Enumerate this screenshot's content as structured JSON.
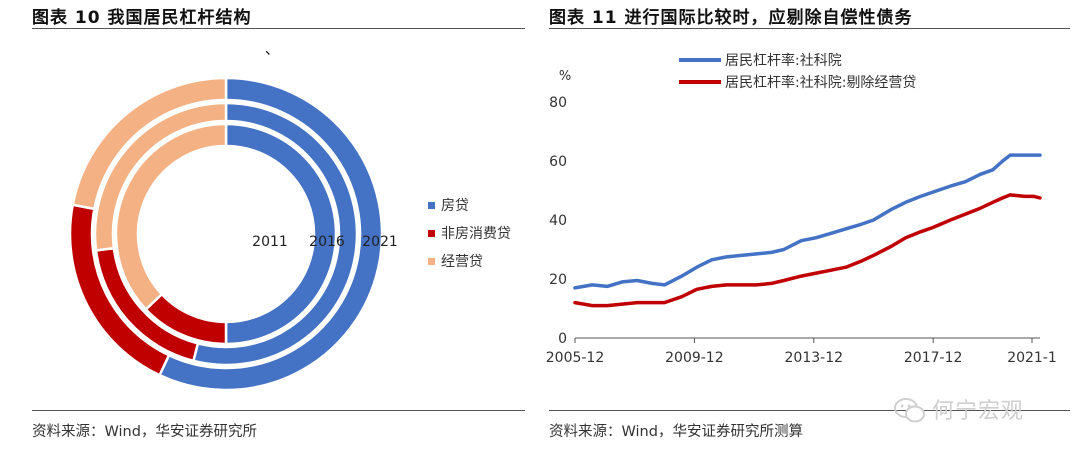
{
  "figures": [
    {
      "title": "图表 10 我国居民杠杆结构",
      "source": "资料来源：Wind，华安证券研究所"
    },
    {
      "title": "图表 11 进行国际比较时，应剔除自偿性债务",
      "source": "资料来源：Wind，华安证券研究所测算"
    }
  ],
  "stray_mark": "、",
  "watermark": "何宁宏观",
  "chart_data": [
    {
      "type": "pie",
      "variant": "nested-donut",
      "title": "",
      "rings": [
        "2011",
        "2016",
        "2021"
      ],
      "categories": [
        "房贷",
        "非房消费贷",
        "经营贷"
      ],
      "colors": [
        "#4472C4",
        "#C00000",
        "#F4B183"
      ],
      "values": {
        "2011": [
          50,
          13,
          37
        ],
        "2016": [
          54,
          19,
          27
        ],
        "2021": [
          57,
          21,
          22
        ]
      },
      "legend_position": "right"
    },
    {
      "type": "line",
      "title": "",
      "ylabel": "%",
      "ylim": [
        0,
        80
      ],
      "yticks": [
        0,
        20,
        40,
        60,
        80
      ],
      "xticklabels": [
        "2005-12",
        "2009-12",
        "2013-12",
        "2017-12",
        "2021-1"
      ],
      "x_range": [
        2005.92,
        2021.5
      ],
      "grid": false,
      "legend_position": "top",
      "series": [
        {
          "name": "居民杠杆率:社科院",
          "color": "#4472C4",
          "points": [
            [
              2005.92,
              17
            ],
            [
              2006.5,
              18
            ],
            [
              2007.0,
              17.5
            ],
            [
              2007.5,
              19
            ],
            [
              2008.0,
              19.5
            ],
            [
              2008.5,
              18.5
            ],
            [
              2008.92,
              18
            ],
            [
              2009.5,
              21
            ],
            [
              2010.0,
              24
            ],
            [
              2010.5,
              26.5
            ],
            [
              2011.0,
              27.5
            ],
            [
              2011.5,
              28
            ],
            [
              2012.0,
              28.5
            ],
            [
              2012.5,
              29
            ],
            [
              2012.92,
              30
            ],
            [
              2013.5,
              33
            ],
            [
              2014.0,
              34
            ],
            [
              2014.5,
              35.5
            ],
            [
              2015.0,
              37
            ],
            [
              2015.5,
              38.5
            ],
            [
              2015.92,
              40
            ],
            [
              2016.5,
              43.5
            ],
            [
              2017.0,
              46
            ],
            [
              2017.5,
              48
            ],
            [
              2017.92,
              49.5
            ],
            [
              2018.5,
              51.5
            ],
            [
              2019.0,
              53
            ],
            [
              2019.5,
              55.5
            ],
            [
              2019.92,
              57
            ],
            [
              2020.25,
              60
            ],
            [
              2020.5,
              62
            ],
            [
              2021.0,
              62
            ],
            [
              2021.5,
              62
            ]
          ]
        },
        {
          "name": "居民杠杆率:社科院:剔除经营贷",
          "color": "#C00000",
          "points": [
            [
              2005.92,
              12
            ],
            [
              2006.5,
              11
            ],
            [
              2007.0,
              11
            ],
            [
              2007.5,
              11.5
            ],
            [
              2008.0,
              12
            ],
            [
              2008.5,
              12
            ],
            [
              2008.92,
              12
            ],
            [
              2009.5,
              14
            ],
            [
              2010.0,
              16.5
            ],
            [
              2010.5,
              17.5
            ],
            [
              2011.0,
              18
            ],
            [
              2011.5,
              18
            ],
            [
              2012.0,
              18
            ],
            [
              2012.5,
              18.5
            ],
            [
              2012.92,
              19.5
            ],
            [
              2013.5,
              21
            ],
            [
              2014.0,
              22
            ],
            [
              2014.5,
              23
            ],
            [
              2015.0,
              24
            ],
            [
              2015.5,
              26
            ],
            [
              2015.92,
              28
            ],
            [
              2016.5,
              31
            ],
            [
              2017.0,
              34
            ],
            [
              2017.5,
              36
            ],
            [
              2017.92,
              37.5
            ],
            [
              2018.5,
              40
            ],
            [
              2019.0,
              42
            ],
            [
              2019.5,
              44
            ],
            [
              2019.92,
              46
            ],
            [
              2020.25,
              47.5
            ],
            [
              2020.5,
              48.5
            ],
            [
              2021.0,
              48
            ],
            [
              2021.3,
              48
            ],
            [
              2021.5,
              47.5
            ]
          ]
        }
      ]
    }
  ]
}
